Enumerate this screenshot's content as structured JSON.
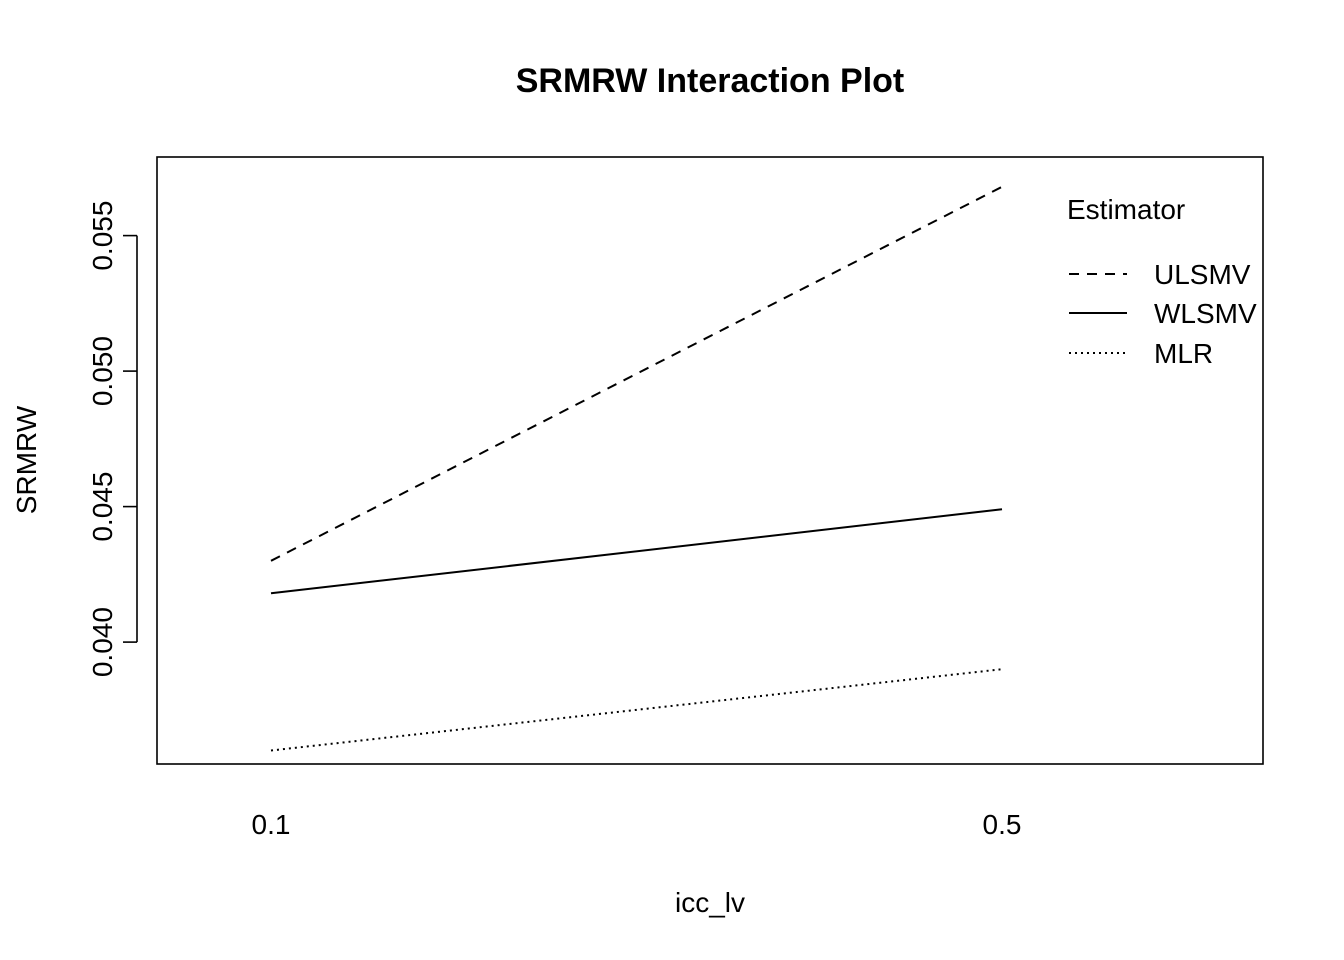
{
  "chart_data": {
    "type": "line",
    "title": "SRMRW Interaction Plot",
    "xlabel": "icc_lv",
    "ylabel": "SRMRW",
    "categories": [
      "0.1",
      "0.5"
    ],
    "x_ticks": [
      "0.1",
      "0.5"
    ],
    "y_ticks": [
      "0.040",
      "0.045",
      "0.050",
      "0.055"
    ],
    "ylim": [
      0.0355,
      0.0579
    ],
    "grid": false,
    "legend_position": "top-right",
    "legend_title": "Estimator",
    "series": [
      {
        "name": "ULSMV",
        "values": [
          0.043,
          0.0568
        ],
        "line_style": "dashed"
      },
      {
        "name": "WLSMV",
        "values": [
          0.0418,
          0.0449
        ],
        "line_style": "solid"
      },
      {
        "name": "MLR",
        "values": [
          0.036,
          0.039
        ],
        "line_style": "dotted"
      }
    ]
  }
}
